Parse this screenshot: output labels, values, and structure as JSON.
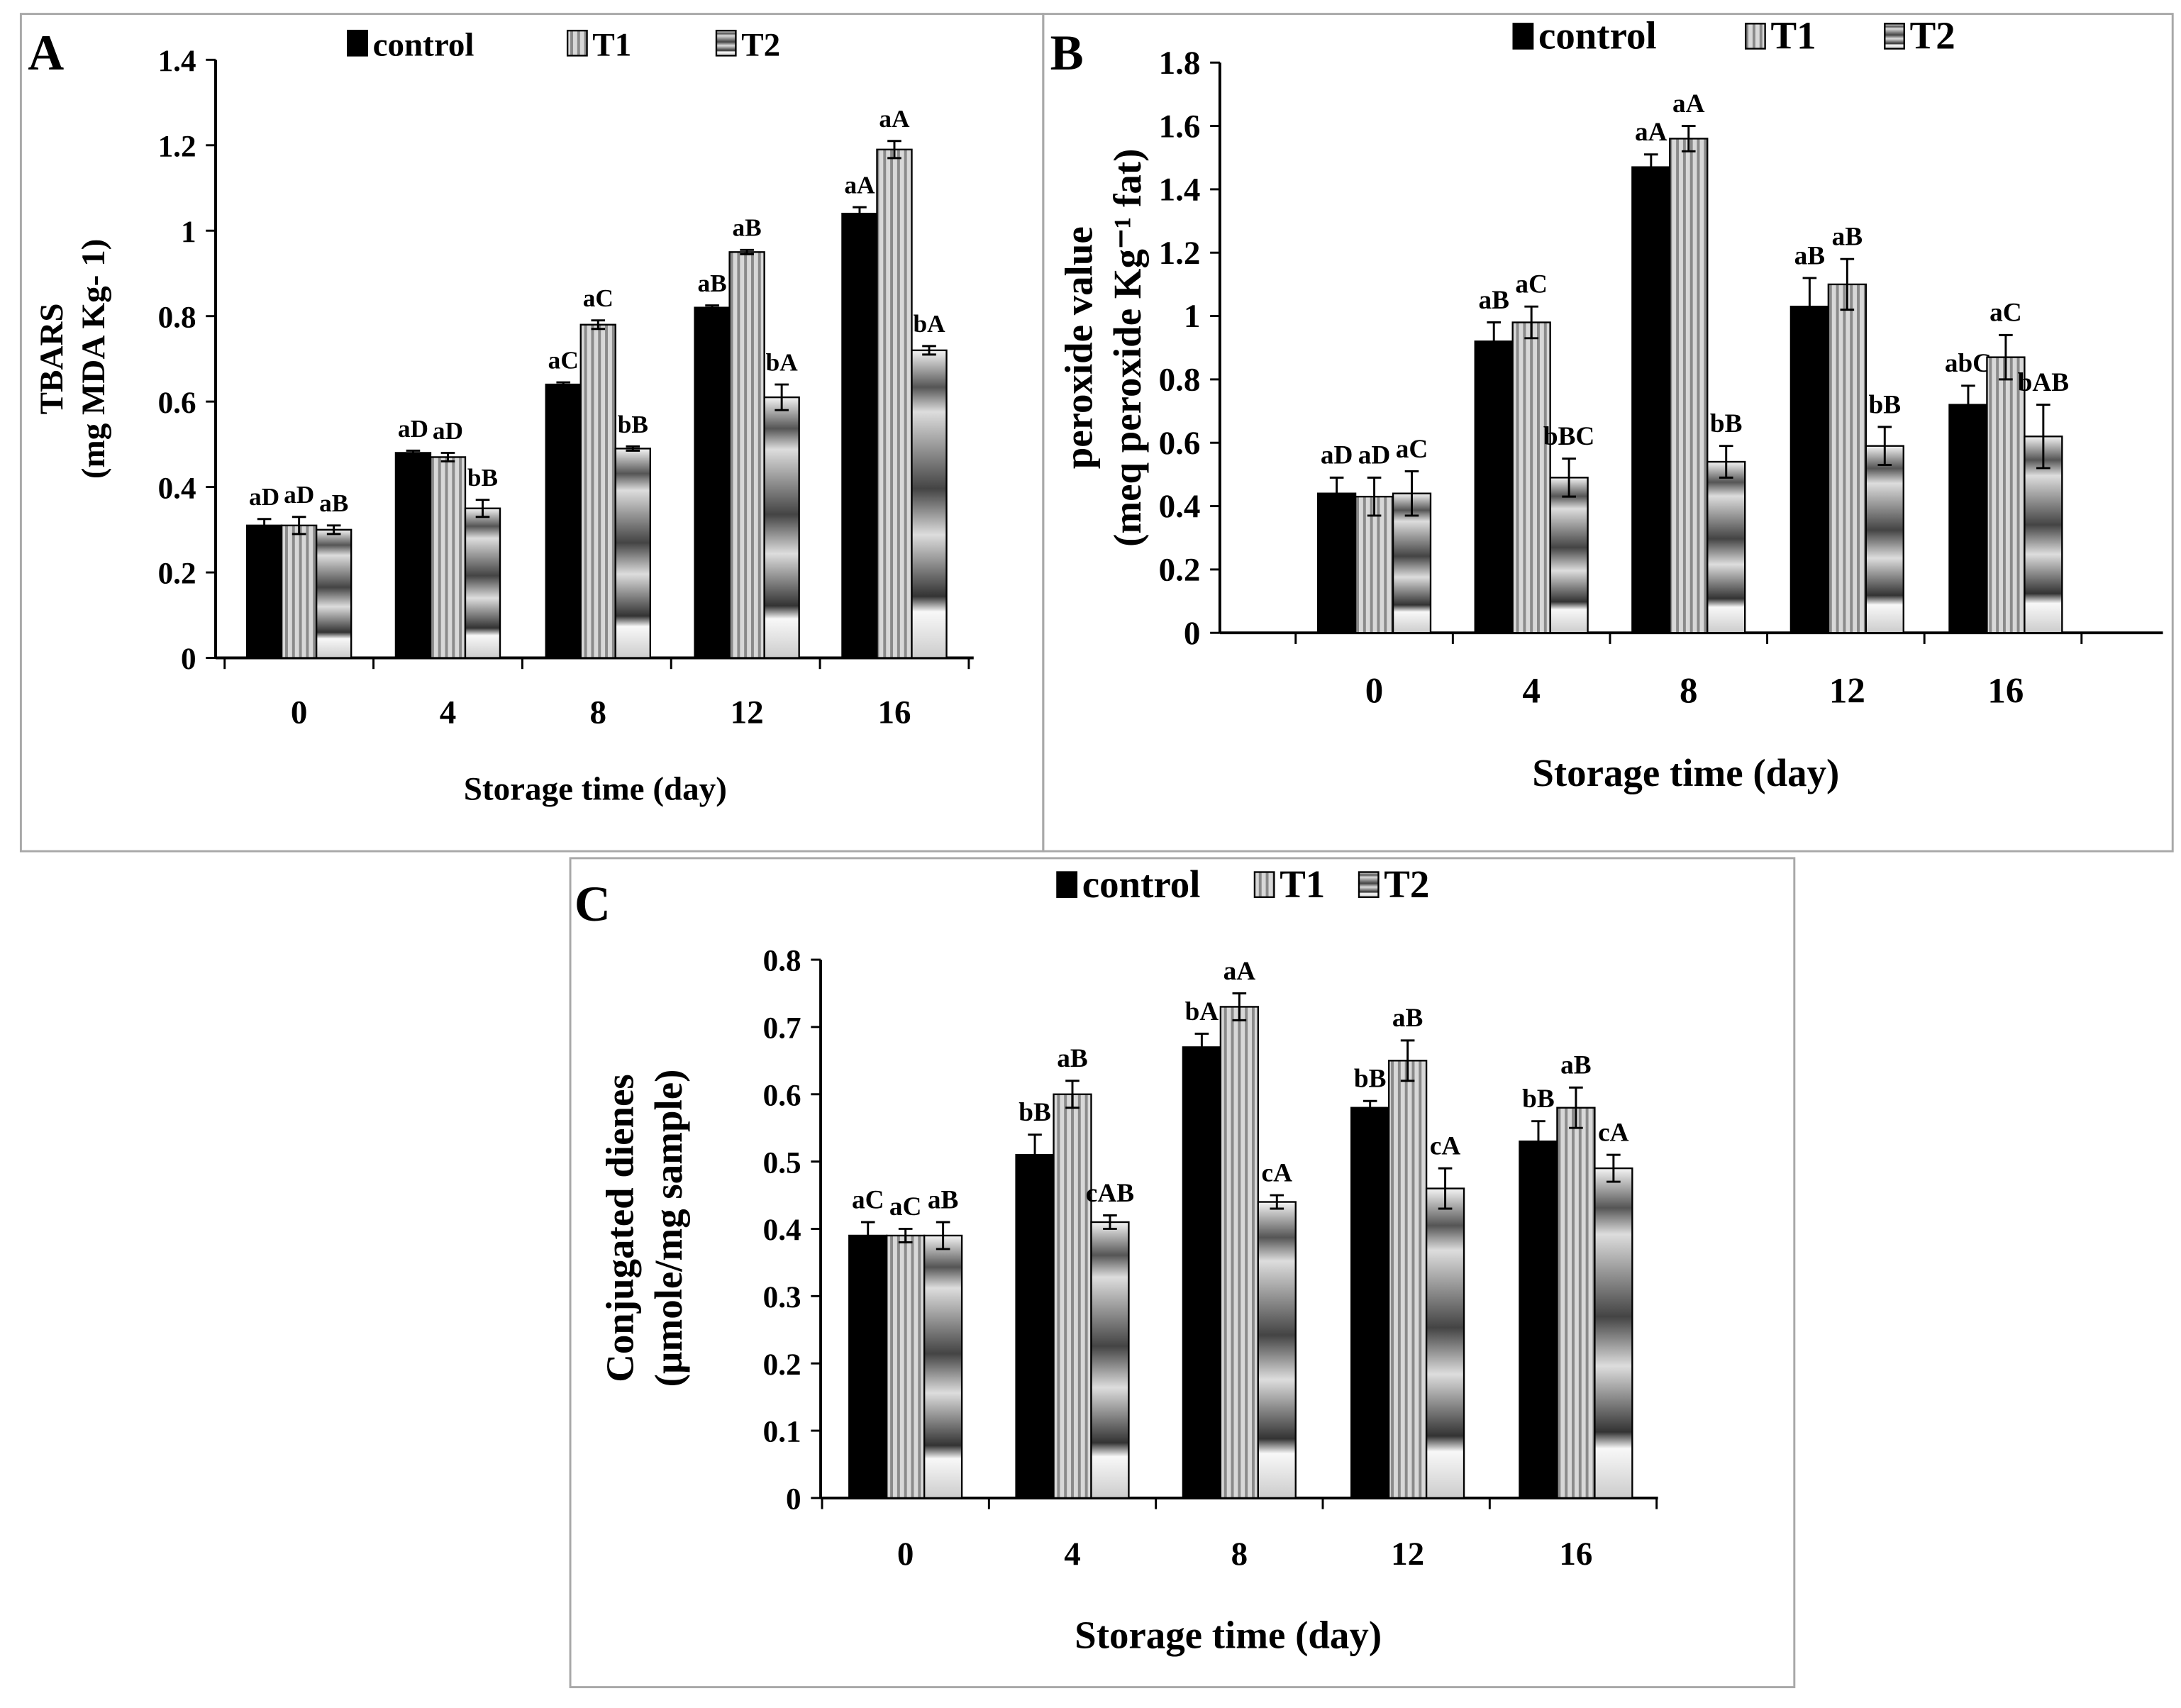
{
  "chart_data": [
    {
      "panel": "A",
      "type": "bar",
      "categories": [
        "0",
        "4",
        "8",
        "12",
        "16"
      ],
      "xlabel": "Storage time (day)",
      "ylabel": [
        "TBARS",
        "(mg MDA Kg- 1)"
      ],
      "ylim": [
        0,
        1.4
      ],
      "yticks": [
        "0",
        "0.2",
        "0.4",
        "0.6",
        "0.8",
        "1",
        "1.2",
        "1.4"
      ],
      "legend_position": "top",
      "series": [
        {
          "name": "control",
          "values": [
            0.31,
            0.48,
            0.64,
            0.82,
            1.04
          ],
          "errors": [
            0.015,
            0.005,
            0.005,
            0.005,
            0.015
          ],
          "labels": [
            "aD",
            "aD",
            "aC",
            "aB",
            "aA"
          ]
        },
        {
          "name": "T1",
          "values": [
            0.31,
            0.47,
            0.78,
            0.95,
            1.19
          ],
          "errors": [
            0.02,
            0.01,
            0.01,
            0.005,
            0.02
          ],
          "labels": [
            "aD",
            "aD",
            "aC",
            "aB",
            "aA"
          ]
        },
        {
          "name": "T2",
          "values": [
            0.3,
            0.35,
            0.49,
            0.61,
            0.72
          ],
          "errors": [
            0.01,
            0.02,
            0.005,
            0.03,
            0.01
          ],
          "labels": [
            "aB",
            "bB",
            "bB",
            "bA",
            "bA"
          ]
        }
      ]
    },
    {
      "panel": "B",
      "type": "bar",
      "categories": [
        "0",
        "4",
        "8",
        "12",
        "16"
      ],
      "xlabel": "Storage time (day)",
      "ylabel": [
        "peroxide value",
        "(meq peroxide Kg⁻¹ fat)"
      ],
      "ylim": [
        0,
        1.8
      ],
      "yticks": [
        "0",
        "0.2",
        "0.4",
        "0.6",
        "0.8",
        "1",
        "1.2",
        "1.4",
        "1.6",
        "1.8"
      ],
      "legend_position": "top",
      "series": [
        {
          "name": "control",
          "values": [
            0.44,
            0.92,
            1.47,
            1.03,
            0.72
          ],
          "errors": [
            0.05,
            0.06,
            0.04,
            0.09,
            0.06
          ],
          "labels": [
            "aD",
            "aB",
            "aA",
            "aB",
            "abC"
          ]
        },
        {
          "name": "T1",
          "values": [
            0.43,
            0.98,
            1.56,
            1.1,
            0.87
          ],
          "errors": [
            0.06,
            0.05,
            0.04,
            0.08,
            0.07
          ],
          "labels": [
            "aD",
            "aC",
            "aA",
            "aB",
            "aC"
          ]
        },
        {
          "name": "T2",
          "values": [
            0.44,
            0.49,
            0.54,
            0.59,
            0.62
          ],
          "errors": [
            0.07,
            0.06,
            0.05,
            0.06,
            0.1
          ],
          "labels": [
            "aC",
            "bBC",
            "bB",
            "bB",
            "bAB"
          ]
        }
      ]
    },
    {
      "panel": "C",
      "type": "bar",
      "categories": [
        "0",
        "4",
        "8",
        "12",
        "16"
      ],
      "xlabel": "Storage time (day)",
      "ylabel": [
        "Conjugated dienes",
        "(µmole/mg sample)"
      ],
      "ylim": [
        0,
        0.8
      ],
      "yticks": [
        "0",
        "0.1",
        "0.2",
        "0.3",
        "0.4",
        "0.5",
        "0.6",
        "0.7",
        "0.8"
      ],
      "legend_position": "top",
      "series": [
        {
          "name": "control",
          "values": [
            0.39,
            0.51,
            0.67,
            0.58,
            0.53
          ],
          "errors": [
            0.02,
            0.03,
            0.02,
            0.01,
            0.03
          ],
          "labels": [
            "aC",
            "bB",
            "bA",
            "bB",
            "bB"
          ]
        },
        {
          "name": "T1",
          "values": [
            0.39,
            0.6,
            0.73,
            0.65,
            0.58
          ],
          "errors": [
            0.01,
            0.02,
            0.02,
            0.03,
            0.03
          ],
          "labels": [
            "aC",
            "aB",
            "aA",
            "aB",
            "aB"
          ]
        },
        {
          "name": "T2",
          "values": [
            0.39,
            0.41,
            0.44,
            0.46,
            0.49
          ],
          "errors": [
            0.02,
            0.01,
            0.01,
            0.03,
            0.02
          ],
          "labels": [
            "aB",
            "cAB",
            "cA",
            "cA",
            "cA"
          ]
        }
      ]
    }
  ],
  "colors": {
    "control": "#000000",
    "T1": "#b8b8b8",
    "T2": "#d0d0d0",
    "frame": "#a8a8a8"
  }
}
